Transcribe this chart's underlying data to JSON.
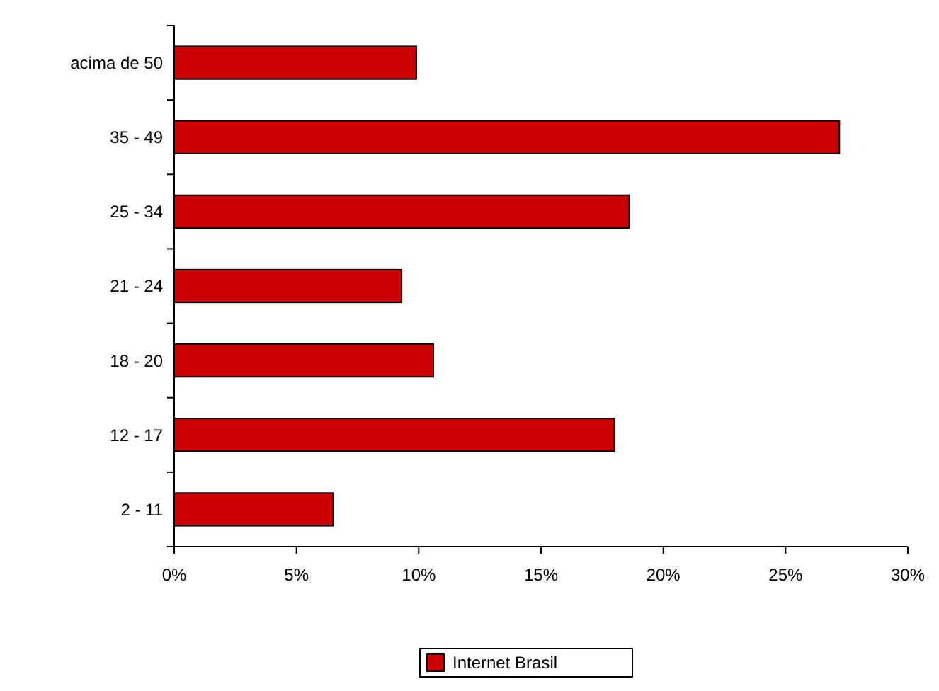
{
  "chart_data": {
    "type": "bar",
    "orientation": "horizontal",
    "categories": [
      "acima de 50",
      "35 - 49",
      "25 - 34",
      "21 - 24",
      "18 - 20",
      "12 - 17",
      "2 - 11"
    ],
    "series": [
      {
        "name": "Internet Brasil",
        "color": "#cc0000",
        "values": [
          9.9,
          27.2,
          18.6,
          9.3,
          10.6,
          18.0,
          6.5
        ]
      }
    ],
    "xlim": [
      0,
      30
    ],
    "xticks": [
      {
        "value": 0,
        "label": "0%"
      },
      {
        "value": 5,
        "label": "5%"
      },
      {
        "value": 10,
        "label": "10%"
      },
      {
        "value": 15,
        "label": "15%"
      },
      {
        "value": 20,
        "label": "20%"
      },
      {
        "value": 25,
        "label": "25%"
      },
      {
        "value": 30,
        "label": "30%"
      }
    ],
    "legend": "bottom",
    "grid": false
  }
}
